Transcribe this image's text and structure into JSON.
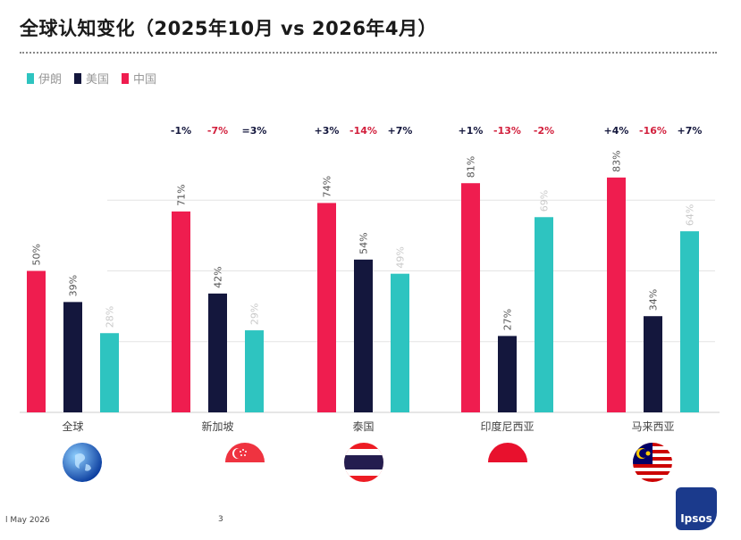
{
  "title": "全球认知变化（2025年10月 vs 2026年4月）",
  "legend": [
    {
      "label": "伊朗",
      "color": "#2ec4c0"
    },
    {
      "label": "美国",
      "color": "#14173d"
    },
    {
      "label": "中国",
      "color": "#ef1d4f"
    }
  ],
  "footer": {
    "date": "l May 2026",
    "page": "3",
    "logo": "Ipsos"
  },
  "chart_data": {
    "type": "bar",
    "categories": [
      "全球",
      "新加坡",
      "泰国",
      "印度尼西亚",
      "马来西亚"
    ],
    "series": [
      {
        "name": "中国",
        "values": [
          50,
          71,
          74,
          81,
          83
        ],
        "color": "#ef1d4f"
      },
      {
        "name": "美国",
        "values": [
          39,
          42,
          54,
          27,
          34
        ],
        "color": "#14173d"
      },
      {
        "name": "伊朗",
        "values": [
          28,
          29,
          49,
          69,
          64
        ],
        "color": "#2ec4c0"
      }
    ],
    "data_labels": [
      [
        "50%",
        "39%",
        "28%"
      ],
      [
        "71%",
        "42%",
        "29%"
      ],
      [
        "74%",
        "54%",
        "49%"
      ],
      [
        "81%",
        "27%",
        "69%"
      ],
      [
        "83%",
        "34%",
        "64%"
      ]
    ],
    "changes": [
      null,
      [
        {
          "text": "-1%",
          "color": "#14173d"
        },
        {
          "text": "-7%",
          "color": "#d21f3c"
        },
        {
          "text": "=3%",
          "color": "#14173d"
        }
      ],
      [
        {
          "text": "+3%",
          "color": "#14173d"
        },
        {
          "text": "-14%",
          "color": "#d21f3c"
        },
        {
          "text": "+7%",
          "color": "#14173d"
        }
      ],
      [
        {
          "text": "+1%",
          "color": "#14173d"
        },
        {
          "text": "-13%",
          "color": "#d21f3c"
        },
        {
          "text": "-2%",
          "color": "#d21f3c"
        }
      ],
      [
        {
          "text": "+4%",
          "color": "#14173d"
        },
        {
          "text": "-16%",
          "color": "#d21f3c"
        },
        {
          "text": "+7%",
          "color": "#14173d"
        }
      ]
    ],
    "flags": [
      "globe-icon",
      "singapore-flag-icon",
      "thailand-flag-icon",
      "indonesia-flag-icon",
      "malaysia-flag-icon"
    ],
    "ylim": [
      0,
      100
    ],
    "grid": true,
    "legend_position": "top-left"
  }
}
